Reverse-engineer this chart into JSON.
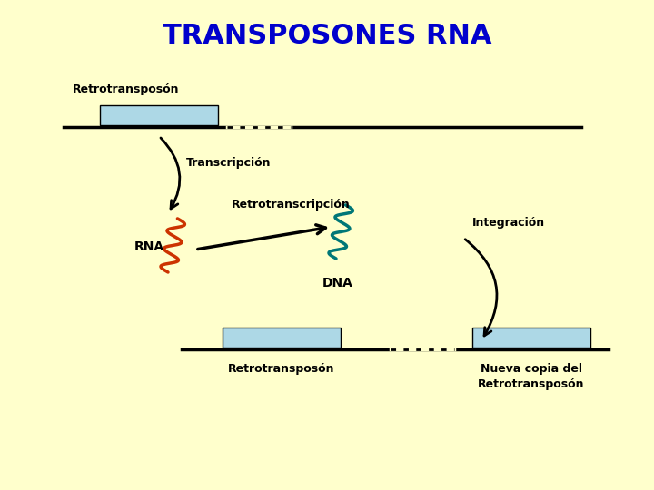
{
  "title": "TRANSPOSONES RNA",
  "title_color": "#0000CC",
  "title_fontsize": 22,
  "background_color": "#FFFFCC",
  "line_color": "#000000",
  "box_color": "#ADD8E6",
  "rna_color": "#CC3300",
  "dna_color": "#007777",
  "text_color": "#000000",
  "label_transcripcion": "Transcripción",
  "label_retrotranscripcion": "Retrotranscripción",
  "label_integracion": "Integración",
  "label_rna": "RNA",
  "label_dna": "DNA",
  "label_retrotransposon": "Retrotransposón",
  "label_nueva_copia": "Nueva copia del\nRetrotransposón"
}
